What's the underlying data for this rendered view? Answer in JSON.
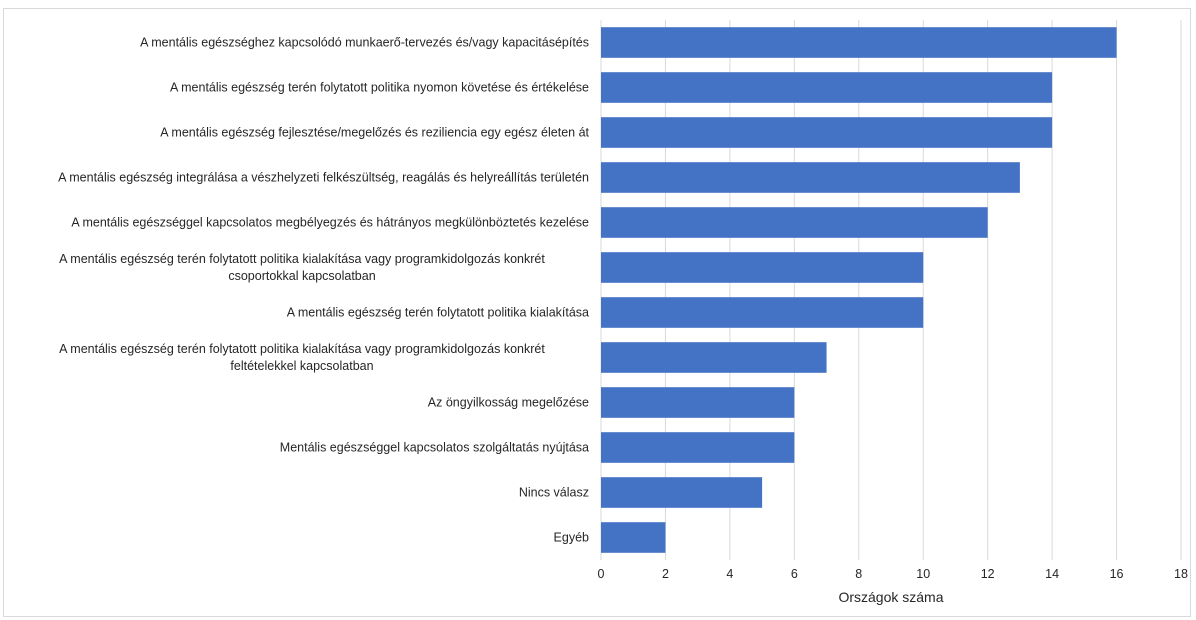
{
  "chart_data": {
    "type": "bar",
    "orientation": "horizontal",
    "categories": [
      "A mentális egészséghez kapcsolódó munkaerő-tervezés és/vagy kapacitásépítés",
      "A mentális egészség terén folytatott politika nyomon követése és értékelése",
      "A mentális egészség fejlesztése/megelőzés és reziliencia egy egész életen át",
      "A mentális egészség integrálása a vészhelyzeti felkészültség, reagálás és helyreállítás területén",
      "A mentális egészséggel kapcsolatos megbélyegzés és hátrányos megkülönböztetés kezelése",
      "A mentális egészség terén folytatott politika kialakítása vagy programkidolgozás konkrét csoportokkal kapcsolatban",
      "A mentális egészség terén folytatott politika kialakítása",
      "A mentális egészség terén folytatott politika kialakítása vagy programkidolgozás konkrét feltételekkel kapcsolatban",
      "Az öngyilkosság megelőzése",
      "Mentális egészséggel kapcsolatos szolgáltatás nyújtása",
      "Nincs válasz",
      "Egyéb"
    ],
    "category_lines": [
      [
        "A mentális egészséghez kapcsolódó munkaerő-tervezés és/vagy kapacitásépítés"
      ],
      [
        "A mentális egészség terén folytatott politika nyomon követése és értékelése"
      ],
      [
        "A mentális egészség fejlesztése/megelőzés és reziliencia egy egész életen át"
      ],
      [
        "A mentális egészség integrálása a vészhelyzeti felkészültség, reagálás és helyreállítás területén"
      ],
      [
        "A mentális egészséggel kapcsolatos megbélyegzés és hátrányos megkülönböztetés kezelése"
      ],
      [
        "A mentális egészség terén folytatott politika kialakítása vagy programkidolgozás konkrét",
        "csoportokkal kapcsolatban"
      ],
      [
        "A mentális egészség terén folytatott politika kialakítása"
      ],
      [
        "A mentális egészség terén folytatott politika kialakítása vagy programkidolgozás konkrét",
        "feltételekkel kapcsolatban"
      ],
      [
        "Az öngyilkosság megelőzése"
      ],
      [
        "Mentális egészséggel kapcsolatos szolgáltatás nyújtása"
      ],
      [
        "Nincs válasz"
      ],
      [
        "Egyéb"
      ]
    ],
    "values": [
      16,
      14,
      14,
      13,
      12,
      10,
      10,
      7,
      6,
      6,
      5,
      2
    ],
    "title": "",
    "xlabel": "Országok száma",
    "ylabel": "",
    "xlim": [
      0,
      18
    ],
    "xticks": [
      0,
      2,
      4,
      6,
      8,
      10,
      12,
      14,
      16,
      18
    ],
    "grid": "vertical",
    "legend": "none",
    "bar_color": "#4472c4"
  }
}
